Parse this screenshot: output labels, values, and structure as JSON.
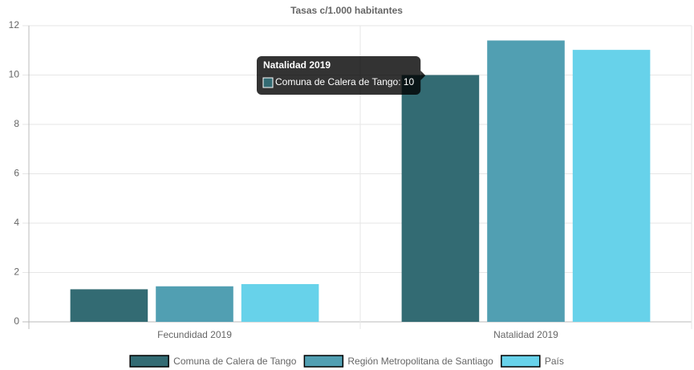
{
  "chart_data": {
    "type": "bar",
    "title": "Tasas c/1.000 habitantes",
    "categories": [
      "Fecundidad 2019",
      "Natalidad 2019"
    ],
    "series": [
      {
        "name": "Comuna de Calera de Tango",
        "color": "#336b73",
        "values": [
          1.32,
          10
        ]
      },
      {
        "name": "Región Metropolitana de Santiago",
        "color": "#519fb2",
        "values": [
          1.44,
          11.4
        ]
      },
      {
        "name": "País",
        "color": "#67d2ea",
        "values": [
          1.53,
          11.02
        ]
      }
    ],
    "ylim": [
      0,
      12
    ],
    "yticks": [
      0,
      2,
      4,
      6,
      8,
      10,
      12
    ],
    "grid": true,
    "legend": "bottom",
    "tooltip": {
      "title": "Natalidad 2019",
      "label": "Comuna de Calera de Tango: 10"
    }
  }
}
